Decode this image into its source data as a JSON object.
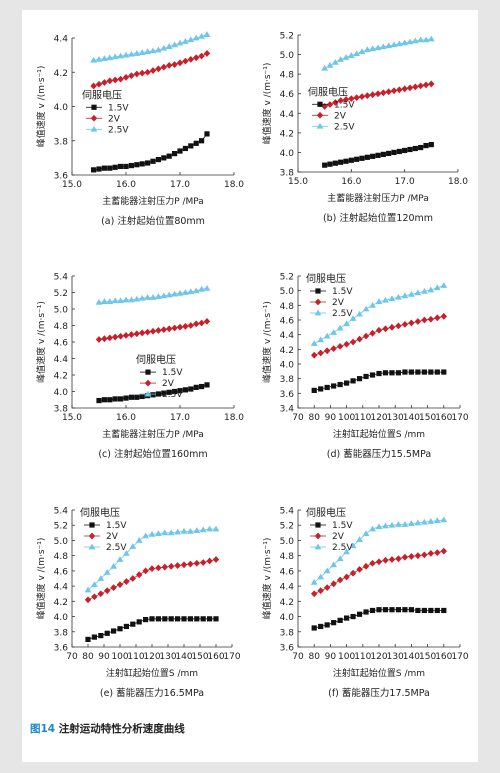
{
  "figure_caption": {
    "label": "图14",
    "text": " 注射运动特性分析速度曲线",
    "label_color": "#1a88c6"
  },
  "legend_title": "伺服电压",
  "series_style": [
    {
      "name": "1.5V",
      "color": "#111111",
      "marker": "square"
    },
    {
      "name": "2V",
      "color": "#c8202a",
      "marker": "diamond"
    },
    {
      "name": "2.5V",
      "color": "#6ec6ea",
      "marker": "triangle"
    }
  ],
  "chart_data": [
    {
      "type": "line",
      "caption": "(a) 注射起始位置80mm",
      "ylabel": "峰值速度 v /(m·s⁻¹)",
      "xlabel": "主蓄能器注射压力P /MPa",
      "xlim": [
        15,
        18
      ],
      "ylim": [
        3.6,
        4.4
      ],
      "xticks": [
        "15.0",
        "16.0",
        "17.0",
        "18.0"
      ],
      "yticks": [
        "3.6",
        "3.8",
        "4.0",
        "4.2",
        "4.4"
      ],
      "x": [
        15.4,
        15.5,
        15.6,
        15.7,
        15.8,
        15.9,
        16.0,
        16.1,
        16.2,
        16.3,
        16.4,
        16.5,
        16.6,
        16.7,
        16.8,
        16.9,
        17.0,
        17.1,
        17.2,
        17.3,
        17.4,
        17.5
      ],
      "series": [
        {
          "name": "1.5V",
          "values": [
            3.63,
            3.635,
            3.64,
            3.64,
            3.645,
            3.65,
            3.65,
            3.655,
            3.66,
            3.665,
            3.67,
            3.68,
            3.69,
            3.7,
            3.71,
            3.725,
            3.74,
            3.755,
            3.77,
            3.785,
            3.8,
            3.84
          ]
        },
        {
          "name": "2V",
          "values": [
            4.12,
            4.13,
            4.14,
            4.15,
            4.155,
            4.16,
            4.17,
            4.18,
            4.19,
            4.195,
            4.2,
            4.21,
            4.22,
            4.23,
            4.24,
            4.245,
            4.255,
            4.265,
            4.275,
            4.285,
            4.295,
            4.31
          ]
        },
        {
          "name": "2.5V",
          "values": [
            4.27,
            4.275,
            4.28,
            4.285,
            4.29,
            4.295,
            4.3,
            4.305,
            4.31,
            4.315,
            4.32,
            4.325,
            4.33,
            4.34,
            4.35,
            4.36,
            4.37,
            4.38,
            4.39,
            4.4,
            4.41,
            4.42
          ]
        }
      ],
      "legend_pos": "middle-left"
    },
    {
      "type": "line",
      "caption": "(b) 注射起始位置120mm",
      "ylabel": "峰值速度 v /(m·s⁻¹)",
      "xlabel": "主蓄能器注射压力P /MPa",
      "xlim": [
        15,
        18
      ],
      "ylim": [
        3.8,
        5.2
      ],
      "xticks": [
        "15.0",
        "16.0",
        "17.0",
        "18.0"
      ],
      "yticks": [
        "3.8",
        "4.0",
        "4.2",
        "4.4",
        "4.6",
        "4.8",
        "5.0",
        "5.2"
      ],
      "x": [
        15.5,
        15.6,
        15.7,
        15.8,
        15.9,
        16.0,
        16.1,
        16.2,
        16.3,
        16.4,
        16.5,
        16.6,
        16.7,
        16.8,
        16.9,
        17.0,
        17.1,
        17.2,
        17.3,
        17.4,
        17.5
      ],
      "series": [
        {
          "name": "1.5V",
          "values": [
            3.87,
            3.88,
            3.89,
            3.9,
            3.91,
            3.92,
            3.93,
            3.94,
            3.95,
            3.96,
            3.97,
            3.98,
            3.99,
            4.0,
            4.01,
            4.02,
            4.03,
            4.04,
            4.05,
            4.07,
            4.08
          ]
        },
        {
          "name": "2V",
          "values": [
            4.47,
            4.49,
            4.51,
            4.53,
            4.54,
            4.55,
            4.56,
            4.57,
            4.58,
            4.59,
            4.6,
            4.61,
            4.62,
            4.63,
            4.64,
            4.65,
            4.66,
            4.67,
            4.68,
            4.69,
            4.7
          ]
        },
        {
          "name": "2.5V",
          "values": [
            4.86,
            4.89,
            4.92,
            4.95,
            4.97,
            4.99,
            5.01,
            5.03,
            5.05,
            5.06,
            5.07,
            5.08,
            5.09,
            5.1,
            5.11,
            5.12,
            5.13,
            5.14,
            5.15,
            5.15,
            5.16
          ]
        }
      ],
      "legend_pos": "middle-left"
    },
    {
      "type": "line",
      "caption": "(c) 注射起始位置160mm",
      "ylabel": "峰值速度 v /(m·s⁻¹)",
      "xlabel": "主蓄能器注射压力P /MPa",
      "xlim": [
        15,
        18
      ],
      "ylim": [
        3.8,
        5.4
      ],
      "xticks": [
        "15.0",
        "16.0",
        "17.0",
        "18.0"
      ],
      "yticks": [
        "3.8",
        "4.0",
        "4.2",
        "4.4",
        "4.6",
        "4.8",
        "5.0",
        "5.2",
        "5.4"
      ],
      "x": [
        15.5,
        15.6,
        15.7,
        15.8,
        15.9,
        16.0,
        16.1,
        16.2,
        16.3,
        16.4,
        16.5,
        16.6,
        16.7,
        16.8,
        16.9,
        17.0,
        17.1,
        17.2,
        17.3,
        17.4,
        17.5
      ],
      "series": [
        {
          "name": "1.5V",
          "values": [
            3.89,
            3.9,
            3.9,
            3.91,
            3.91,
            3.92,
            3.93,
            3.93,
            3.94,
            3.95,
            3.96,
            3.97,
            3.98,
            3.99,
            4.0,
            4.01,
            4.02,
            4.03,
            4.05,
            4.06,
            4.08
          ]
        },
        {
          "name": "2V",
          "values": [
            4.63,
            4.64,
            4.65,
            4.66,
            4.67,
            4.68,
            4.69,
            4.7,
            4.71,
            4.72,
            4.73,
            4.74,
            4.75,
            4.76,
            4.77,
            4.78,
            4.79,
            4.8,
            4.82,
            4.83,
            4.85
          ]
        },
        {
          "name": "2.5V",
          "values": [
            5.08,
            5.09,
            5.09,
            5.1,
            5.1,
            5.11,
            5.11,
            5.12,
            5.13,
            5.14,
            5.14,
            5.15,
            5.16,
            5.17,
            5.18,
            5.19,
            5.2,
            5.21,
            5.22,
            5.24,
            5.25
          ]
        }
      ],
      "legend_pos": "lower-center"
    },
    {
      "type": "line",
      "caption": "(d) 蓄能器压力15.5MPa",
      "ylabel": "峰值速度 v /(m·s⁻¹)",
      "xlabel": "注射缸起始位置S /mm",
      "xlim": [
        70,
        170
      ],
      "ylim": [
        3.4,
        5.2
      ],
      "xticks": [
        "70",
        "80",
        "90",
        "100",
        "110",
        "120",
        "130",
        "140",
        "150",
        "160",
        "170"
      ],
      "yticks": [
        "3.4",
        "3.6",
        "3.8",
        "4.0",
        "4.2",
        "4.4",
        "4.6",
        "4.8",
        "5.0",
        "5.2"
      ],
      "x": [
        80,
        84,
        88,
        92,
        96,
        100,
        104,
        108,
        112,
        116,
        120,
        124,
        128,
        132,
        136,
        140,
        144,
        148,
        152,
        156,
        160
      ],
      "series": [
        {
          "name": "1.5V",
          "values": [
            3.64,
            3.66,
            3.68,
            3.7,
            3.72,
            3.74,
            3.77,
            3.8,
            3.83,
            3.85,
            3.87,
            3.88,
            3.88,
            3.88,
            3.89,
            3.89,
            3.89,
            3.89,
            3.89,
            3.89,
            3.89
          ]
        },
        {
          "name": "2V",
          "values": [
            4.12,
            4.15,
            4.18,
            4.21,
            4.24,
            4.27,
            4.3,
            4.34,
            4.38,
            4.42,
            4.46,
            4.48,
            4.5,
            4.52,
            4.54,
            4.56,
            4.58,
            4.6,
            4.61,
            4.63,
            4.65
          ]
        },
        {
          "name": "2.5V",
          "values": [
            4.28,
            4.33,
            4.38,
            4.43,
            4.49,
            4.55,
            4.62,
            4.68,
            4.75,
            4.8,
            4.85,
            4.87,
            4.89,
            4.91,
            4.93,
            4.95,
            4.97,
            4.99,
            5.01,
            5.04,
            5.07
          ]
        }
      ],
      "legend_pos": "top-left"
    },
    {
      "type": "line",
      "caption": "(e) 蓄能器压力16.5MPa",
      "ylabel": "峰值速度 v /(m·s⁻¹)",
      "xlabel": "注射缸起始位置S /mm",
      "xlim": [
        70,
        170
      ],
      "ylim": [
        3.6,
        5.4
      ],
      "xticks": [
        "70",
        "80",
        "90",
        "100",
        "110",
        "120",
        "130",
        "140",
        "150",
        "160",
        "170"
      ],
      "yticks": [
        "3.6",
        "3.8",
        "4.0",
        "4.2",
        "4.4",
        "4.6",
        "4.8",
        "5.0",
        "5.2",
        "5.4"
      ],
      "x": [
        80,
        84,
        88,
        92,
        96,
        100,
        104,
        108,
        112,
        116,
        120,
        124,
        128,
        132,
        136,
        140,
        144,
        148,
        152,
        156,
        160
      ],
      "series": [
        {
          "name": "1.5V",
          "values": [
            3.7,
            3.73,
            3.75,
            3.78,
            3.81,
            3.84,
            3.87,
            3.9,
            3.93,
            3.96,
            3.97,
            3.97,
            3.97,
            3.97,
            3.97,
            3.97,
            3.97,
            3.97,
            3.97,
            3.97,
            3.97
          ]
        },
        {
          "name": "2V",
          "values": [
            4.22,
            4.26,
            4.3,
            4.34,
            4.38,
            4.42,
            4.46,
            4.5,
            4.55,
            4.6,
            4.63,
            4.64,
            4.65,
            4.66,
            4.67,
            4.68,
            4.69,
            4.7,
            4.71,
            4.73,
            4.75
          ]
        },
        {
          "name": "2.5V",
          "values": [
            4.35,
            4.42,
            4.5,
            4.58,
            4.66,
            4.75,
            4.83,
            4.92,
            5.0,
            5.06,
            5.08,
            5.09,
            5.1,
            5.1,
            5.11,
            5.12,
            5.12,
            5.13,
            5.14,
            5.15,
            5.15
          ]
        }
      ],
      "legend_pos": "top-left"
    },
    {
      "type": "line",
      "caption": "(f) 蓄能器压力17.5MPa",
      "ylabel": "峰值速度 v /(m·s⁻¹)",
      "xlabel": "注射缸起始位置S /mm",
      "xlim": [
        70,
        170
      ],
      "ylim": [
        3.6,
        5.4
      ],
      "xticks": [
        "70",
        "80",
        "90",
        "100",
        "110",
        "120",
        "130",
        "140",
        "150",
        "160",
        "170"
      ],
      "yticks": [
        "3.6",
        "3.8",
        "4.0",
        "4.2",
        "4.4",
        "4.6",
        "4.8",
        "5.0",
        "5.2",
        "5.4"
      ],
      "x": [
        80,
        84,
        88,
        92,
        96,
        100,
        104,
        108,
        112,
        116,
        120,
        124,
        128,
        132,
        136,
        140,
        144,
        148,
        152,
        156,
        160
      ],
      "series": [
        {
          "name": "1.5V",
          "values": [
            3.85,
            3.87,
            3.89,
            3.92,
            3.95,
            3.98,
            4.0,
            4.03,
            4.06,
            4.08,
            4.09,
            4.09,
            4.09,
            4.09,
            4.09,
            4.09,
            4.08,
            4.08,
            4.08,
            4.08,
            4.08
          ]
        },
        {
          "name": "2V",
          "values": [
            4.3,
            4.34,
            4.38,
            4.43,
            4.48,
            4.52,
            4.57,
            4.62,
            4.66,
            4.7,
            4.72,
            4.74,
            4.75,
            4.76,
            4.78,
            4.79,
            4.8,
            4.81,
            4.83,
            4.84,
            4.86
          ]
        },
        {
          "name": "2.5V",
          "values": [
            4.45,
            4.52,
            4.6,
            4.68,
            4.76,
            4.85,
            4.93,
            5.01,
            5.09,
            5.15,
            5.18,
            5.19,
            5.2,
            5.21,
            5.21,
            5.22,
            5.23,
            5.24,
            5.25,
            5.26,
            5.27
          ]
        }
      ],
      "legend_pos": "top-left"
    }
  ]
}
